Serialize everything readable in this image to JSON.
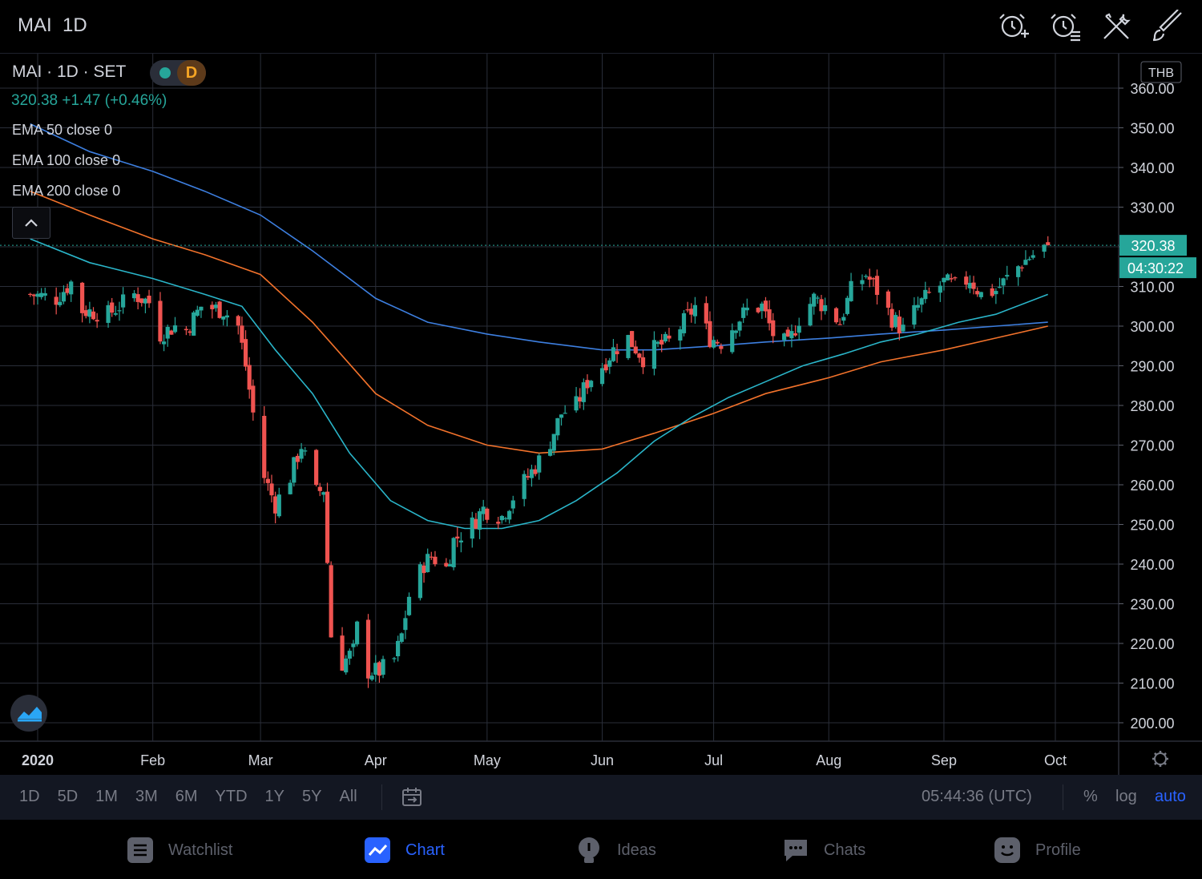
{
  "header": {
    "symbol": "MAI",
    "interval": "1D",
    "icons": [
      "add-alert-icon",
      "alerts-list-icon",
      "tools-icon",
      "drawing-brush-icon"
    ]
  },
  "legend": {
    "title": "MAI · 1D · SET",
    "badge_letter": "D",
    "price_line": "320.38  +1.47 (+0.46%)",
    "ema": [
      "EMA 50 close 0",
      "EMA 100 close 0",
      "EMA 200 close 0"
    ],
    "collapse": "^"
  },
  "currency": "THB",
  "last_price_label": "320.38",
  "countdown_label": "04:30:22",
  "colors": {
    "up": "#26a69a",
    "down": "#ef5350",
    "ema50": "#2ab5c9",
    "ema100": "#f2722b",
    "ema200": "#3d7fe0",
    "background": "#000000",
    "grid": "#2a2e39"
  },
  "chart_data": {
    "type": "candlestick",
    "ylim": [
      195,
      365
    ],
    "y_ticks": [
      "360.00",
      "350.00",
      "340.00",
      "330.00",
      "320.00",
      "310.00",
      "300.00",
      "290.00",
      "280.00",
      "270.00",
      "260.00",
      "250.00",
      "240.00",
      "230.00",
      "220.00",
      "210.00",
      "200.00"
    ],
    "x_ticks": [
      "2020",
      "Feb",
      "Mar",
      "Apr",
      "May",
      "Jun",
      "Jul",
      "Aug",
      "Sep",
      "Oct"
    ],
    "x_tick_dates": [
      "2020-01-01",
      "2020-02-01",
      "2020-03-01",
      "2020-04-01",
      "2020-05-01",
      "2020-06-01",
      "2020-07-01",
      "2020-08-01",
      "2020-09-01",
      "2020-10-01"
    ],
    "close_path": [
      [
        "2019-12-30",
        308
      ],
      [
        "2020-01-06",
        307
      ],
      [
        "2020-01-10",
        311
      ],
      [
        "2020-01-13",
        304
      ],
      [
        "2020-01-20",
        303
      ],
      [
        "2020-01-27",
        308
      ],
      [
        "2020-01-31",
        306
      ],
      [
        "2020-02-03",
        298
      ],
      [
        "2020-02-07",
        300
      ],
      [
        "2020-02-10",
        299
      ],
      [
        "2020-02-14",
        305
      ],
      [
        "2020-02-20",
        304
      ],
      [
        "2020-02-24",
        300
      ],
      [
        "2020-02-26",
        290
      ],
      [
        "2020-02-28",
        278
      ],
      [
        "2020-03-02",
        262
      ],
      [
        "2020-03-05",
        255
      ],
      [
        "2020-03-09",
        262
      ],
      [
        "2020-03-12",
        270
      ],
      [
        "2020-03-16",
        258
      ],
      [
        "2020-03-18",
        259
      ],
      [
        "2020-03-20",
        222
      ],
      [
        "2020-03-23",
        215
      ],
      [
        "2020-03-26",
        218
      ],
      [
        "2020-03-27",
        224
      ],
      [
        "2020-03-30",
        213
      ],
      [
        "2020-04-02",
        213
      ],
      [
        "2020-04-06",
        216
      ],
      [
        "2020-04-08",
        222
      ],
      [
        "2020-04-10",
        232
      ],
      [
        "2020-04-14",
        240
      ],
      [
        "2020-04-16",
        242
      ],
      [
        "2020-04-20",
        239
      ],
      [
        "2020-04-22",
        246
      ],
      [
        "2020-04-27",
        250
      ],
      [
        "2020-04-30",
        254
      ],
      [
        "2020-05-05",
        252
      ],
      [
        "2020-05-08",
        257
      ],
      [
        "2020-05-12",
        262
      ],
      [
        "2020-05-15",
        266
      ],
      [
        "2020-05-18",
        271
      ],
      [
        "2020-05-21",
        278
      ],
      [
        "2020-05-25",
        280
      ],
      [
        "2020-05-28",
        286
      ],
      [
        "2020-06-01",
        290
      ],
      [
        "2020-06-04",
        294
      ],
      [
        "2020-06-08",
        297
      ],
      [
        "2020-06-12",
        292
      ],
      [
        "2020-06-16",
        295
      ],
      [
        "2020-06-19",
        296
      ],
      [
        "2020-06-23",
        301
      ],
      [
        "2020-06-26",
        305
      ],
      [
        "2020-06-30",
        297
      ],
      [
        "2020-07-03",
        296
      ],
      [
        "2020-07-07",
        301
      ],
      [
        "2020-07-10",
        304
      ],
      [
        "2020-07-14",
        305
      ],
      [
        "2020-07-17",
        298
      ],
      [
        "2020-07-21",
        295
      ],
      [
        "2020-07-24",
        302
      ],
      [
        "2020-07-28",
        307
      ],
      [
        "2020-07-31",
        305
      ],
      [
        "2020-08-04",
        301
      ],
      [
        "2020-08-07",
        309
      ],
      [
        "2020-08-11",
        313
      ],
      [
        "2020-08-14",
        309
      ],
      [
        "2020-08-18",
        302
      ],
      [
        "2020-08-21",
        299
      ],
      [
        "2020-08-25",
        305
      ],
      [
        "2020-08-28",
        308
      ],
      [
        "2020-09-01",
        311
      ],
      [
        "2020-09-04",
        310
      ],
      [
        "2020-09-08",
        312
      ],
      [
        "2020-09-11",
        308
      ],
      [
        "2020-09-15",
        309
      ],
      [
        "2020-09-18",
        312
      ],
      [
        "2020-09-22",
        316
      ],
      [
        "2020-09-25",
        318
      ],
      [
        "2020-09-29",
        320.38
      ]
    ],
    "ema50": [
      [
        "2019-12-30",
        322
      ],
      [
        "2020-01-15",
        316
      ],
      [
        "2020-02-01",
        312
      ],
      [
        "2020-02-15",
        308
      ],
      [
        "2020-02-25",
        305
      ],
      [
        "2020-03-05",
        294
      ],
      [
        "2020-03-15",
        283
      ],
      [
        "2020-03-25",
        268
      ],
      [
        "2020-04-05",
        256
      ],
      [
        "2020-04-15",
        251
      ],
      [
        "2020-04-25",
        249
      ],
      [
        "2020-05-05",
        249
      ],
      [
        "2020-05-15",
        251
      ],
      [
        "2020-05-25",
        256
      ],
      [
        "2020-06-05",
        263
      ],
      [
        "2020-06-15",
        271
      ],
      [
        "2020-06-25",
        277
      ],
      [
        "2020-07-05",
        282
      ],
      [
        "2020-07-15",
        286
      ],
      [
        "2020-07-25",
        290
      ],
      [
        "2020-08-05",
        293
      ],
      [
        "2020-08-15",
        296
      ],
      [
        "2020-08-25",
        298
      ],
      [
        "2020-09-05",
        301
      ],
      [
        "2020-09-15",
        303
      ],
      [
        "2020-09-29",
        308
      ]
    ],
    "ema100": [
      [
        "2019-12-30",
        334
      ],
      [
        "2020-01-15",
        328
      ],
      [
        "2020-02-01",
        322
      ],
      [
        "2020-02-15",
        318
      ],
      [
        "2020-03-01",
        313
      ],
      [
        "2020-03-15",
        301
      ],
      [
        "2020-04-01",
        283
      ],
      [
        "2020-04-15",
        275
      ],
      [
        "2020-05-01",
        270
      ],
      [
        "2020-05-15",
        268
      ],
      [
        "2020-06-01",
        269
      ],
      [
        "2020-06-15",
        273
      ],
      [
        "2020-07-01",
        278
      ],
      [
        "2020-07-15",
        283
      ],
      [
        "2020-08-01",
        287
      ],
      [
        "2020-08-15",
        291
      ],
      [
        "2020-09-01",
        294
      ],
      [
        "2020-09-15",
        297
      ],
      [
        "2020-09-29",
        300
      ]
    ],
    "ema200": [
      [
        "2019-12-30",
        351
      ],
      [
        "2020-01-15",
        344
      ],
      [
        "2020-02-01",
        339
      ],
      [
        "2020-02-15",
        334
      ],
      [
        "2020-03-01",
        328
      ],
      [
        "2020-03-15",
        319
      ],
      [
        "2020-04-01",
        307
      ],
      [
        "2020-04-15",
        301
      ],
      [
        "2020-05-01",
        298
      ],
      [
        "2020-05-15",
        296
      ],
      [
        "2020-06-01",
        294
      ],
      [
        "2020-06-15",
        294
      ],
      [
        "2020-07-01",
        295
      ],
      [
        "2020-07-15",
        296
      ],
      [
        "2020-08-01",
        297
      ],
      [
        "2020-08-15",
        298
      ],
      [
        "2020-09-01",
        299
      ],
      [
        "2020-09-15",
        300
      ],
      [
        "2020-09-29",
        301
      ]
    ],
    "last_price": 320.38
  },
  "range_bar": {
    "ranges": [
      "1D",
      "5D",
      "1M",
      "3M",
      "6M",
      "YTD",
      "1Y",
      "5Y",
      "All"
    ],
    "time": "05:44:36 (UTC)",
    "options": [
      "%",
      "log",
      "auto"
    ],
    "active_option": "auto"
  },
  "nav": {
    "items": [
      {
        "label": "Watchlist",
        "icon": "watchlist-icon"
      },
      {
        "label": "Chart",
        "icon": "chart-icon"
      },
      {
        "label": "Ideas",
        "icon": "ideas-icon"
      },
      {
        "label": "Chats",
        "icon": "chats-icon"
      },
      {
        "label": "Profile",
        "icon": "profile-icon"
      }
    ],
    "active": "Chart"
  }
}
